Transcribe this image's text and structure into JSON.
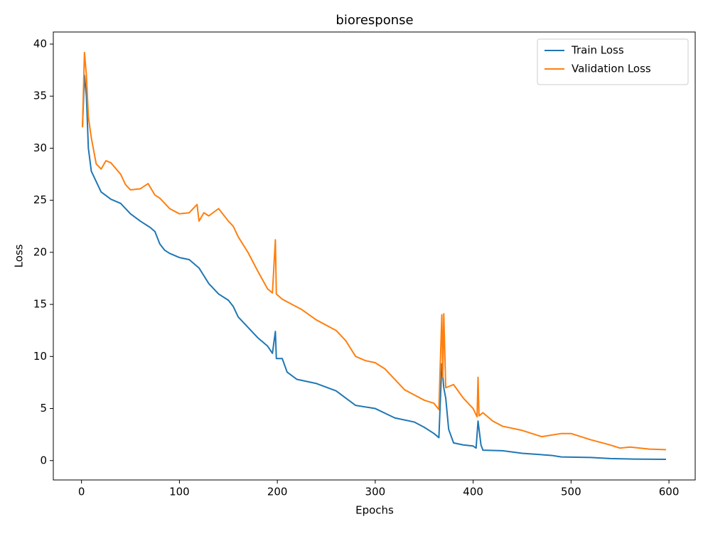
{
  "chart_data": {
    "type": "line",
    "title": "bioresponse",
    "xlabel": "Epochs",
    "ylabel": "Loss",
    "xlim": [
      -28.8,
      626.8
    ],
    "ylim": [
      -1.86,
      41.16
    ],
    "xticks": [
      0,
      100,
      200,
      300,
      400,
      500,
      600
    ],
    "yticks": [
      0,
      5,
      10,
      15,
      20,
      25,
      30,
      35,
      40
    ],
    "grid": false,
    "legend": "upper right",
    "series": [
      {
        "name": "Train Loss",
        "color": "#1f77b4",
        "x": [
          1,
          3,
          5,
          7,
          10,
          15,
          20,
          30,
          40,
          50,
          60,
          70,
          75,
          80,
          85,
          90,
          100,
          110,
          120,
          130,
          140,
          150,
          155,
          160,
          170,
          180,
          190,
          195,
          198,
          199,
          205,
          210,
          220,
          240,
          260,
          280,
          300,
          320,
          340,
          350,
          360,
          365,
          368,
          370,
          372,
          375,
          380,
          390,
          400,
          403,
          405,
          408,
          410,
          430,
          450,
          480,
          490,
          520,
          540,
          560,
          597
        ],
        "values": [
          32.1,
          37,
          35,
          30,
          27.8,
          26.8,
          25.8,
          25.1,
          24.7,
          23.7,
          23,
          22.4,
          22,
          20.8,
          20.2,
          19.9,
          19.5,
          19.3,
          18.5,
          17,
          16,
          15.4,
          14.8,
          13.8,
          12.8,
          11.8,
          11,
          10.3,
          12.4,
          9.8,
          9.8,
          8.5,
          7.8,
          7.4,
          6.7,
          5.3,
          5,
          4.1,
          3.7,
          3.2,
          2.6,
          2.2,
          9.3,
          7,
          6,
          3,
          1.7,
          1.5,
          1.4,
          1.2,
          3.8,
          1.5,
          1.0,
          0.95,
          0.7,
          0.5,
          0.35,
          0.3,
          0.2,
          0.15,
          0.12
        ]
      },
      {
        "name": "Validation Loss",
        "color": "#ff7f0e",
        "x": [
          1,
          3,
          5,
          7,
          10,
          15,
          20,
          25,
          30,
          40,
          45,
          50,
          60,
          68,
          75,
          80,
          90,
          100,
          110,
          118,
          120,
          125,
          130,
          140,
          150,
          155,
          160,
          170,
          180,
          190,
          195,
          198,
          199,
          205,
          215,
          225,
          240,
          260,
          270,
          280,
          290,
          300,
          310,
          320,
          330,
          340,
          350,
          360,
          365,
          368,
          369,
          370,
          372,
          380,
          390,
          400,
          404,
          405,
          406,
          410,
          420,
          430,
          450,
          470,
          490,
          500,
          520,
          540,
          550,
          560,
          580,
          597
        ],
        "values": [
          32,
          39.2,
          37,
          33,
          31,
          28.5,
          28,
          28.8,
          28.6,
          27.5,
          26.5,
          26,
          26.1,
          26.6,
          25.5,
          25.2,
          24.2,
          23.7,
          23.8,
          24.6,
          23,
          23.8,
          23.5,
          24.2,
          23,
          22.5,
          21.5,
          20,
          18.2,
          16.5,
          16.1,
          21.2,
          16,
          15.5,
          15,
          14.5,
          13.5,
          12.5,
          11.5,
          10,
          9.6,
          9.4,
          8.8,
          7.8,
          6.8,
          6.3,
          5.8,
          5.5,
          4.9,
          14,
          8,
          14.1,
          7,
          7.3,
          6,
          5,
          4.2,
          8,
          4.3,
          4.6,
          3.8,
          3.3,
          2.9,
          2.3,
          2.6,
          2.6,
          2.0,
          1.5,
          1.2,
          1.3,
          1.1,
          1.05
        ]
      }
    ]
  }
}
